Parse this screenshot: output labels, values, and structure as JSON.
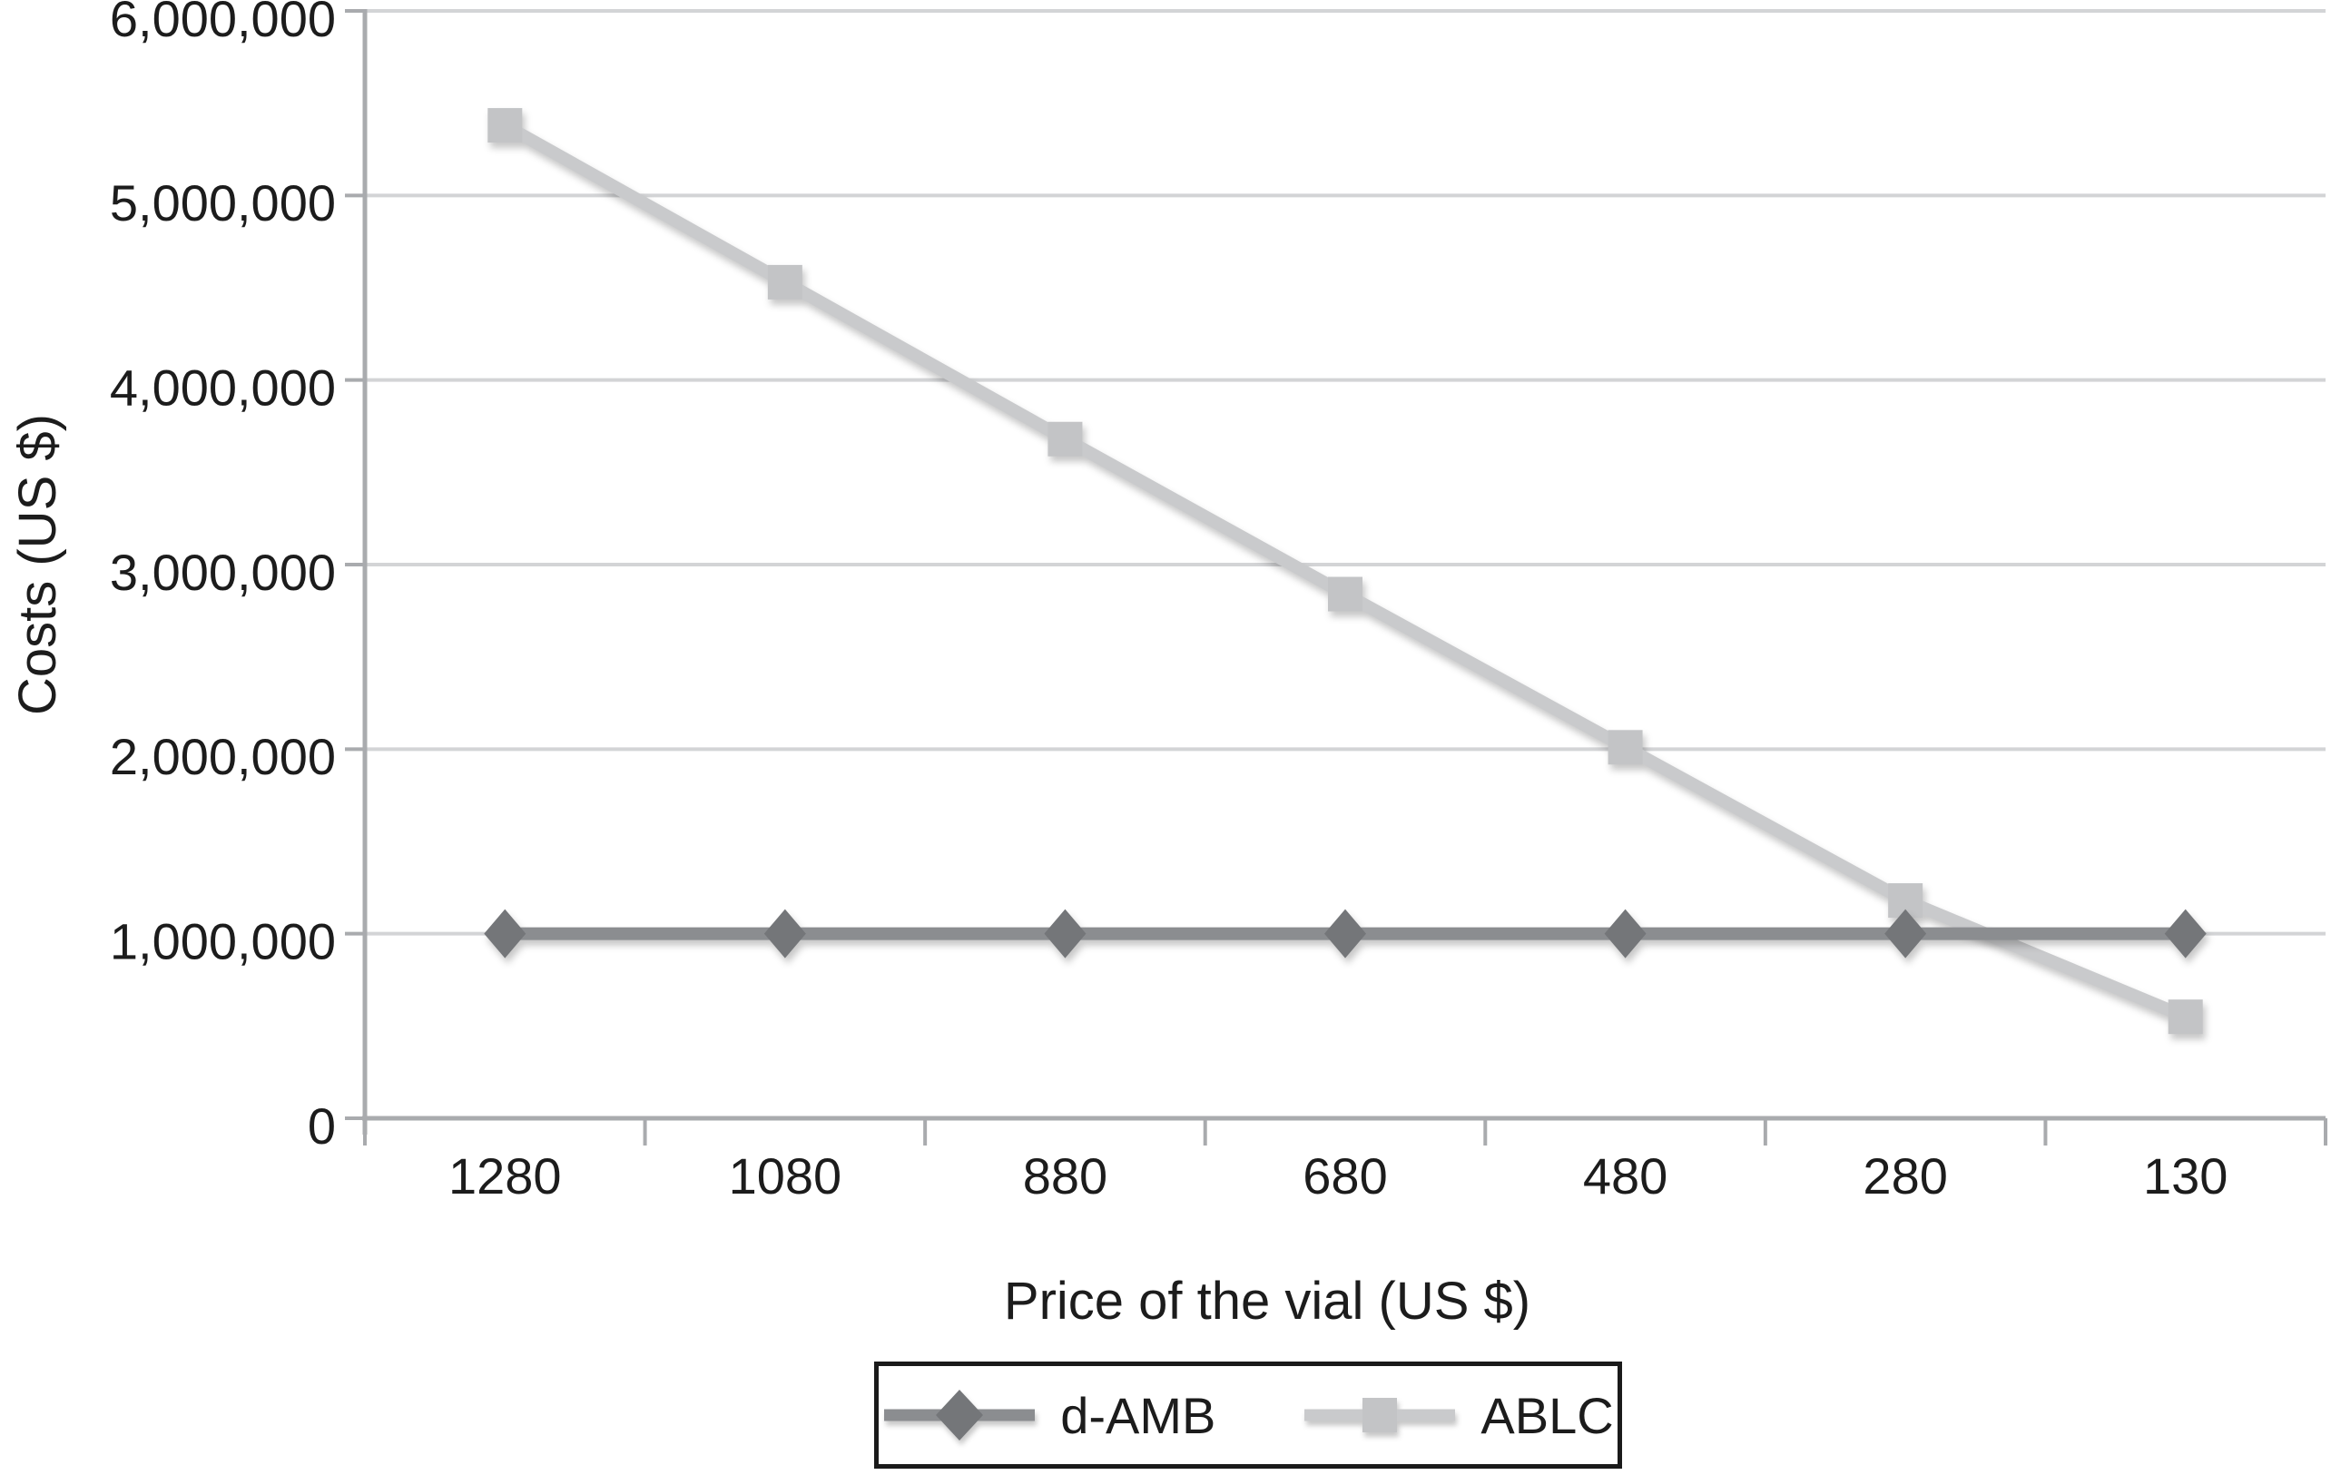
{
  "figure": {
    "background": "#ffffff",
    "text_color": "#1c1c1c"
  },
  "chart_data": {
    "type": "line",
    "title": "",
    "xlabel": "Price of the vial (US $)",
    "ylabel": "Costs (US $)",
    "categories": [
      "1280",
      "1080",
      "880",
      "680",
      "480",
      "280",
      "130"
    ],
    "series": [
      {
        "name": "d-AMB",
        "marker": "diamond",
        "color": "#8b8d90",
        "marker_color": "#747679",
        "values": [
          1000000,
          1000000,
          1000000,
          1000000,
          1000000,
          1000000,
          1000000
        ]
      },
      {
        "name": "ABLC",
        "marker": "square",
        "color": "#c9cacc",
        "marker_color": "#c3c4c6",
        "values": [
          5380000,
          4530000,
          3680000,
          2840000,
          2010000,
          1180000,
          550000
        ]
      }
    ],
    "ylim": [
      0,
      6000000
    ],
    "yticks": [
      0,
      1000000,
      2000000,
      3000000,
      4000000,
      5000000,
      6000000
    ],
    "ytick_labels": [
      "0",
      "1,000,000",
      "2,000,000",
      "3,000,000",
      "4,000,000",
      "5,000,000",
      "6,000,000"
    ],
    "grid": true,
    "legend_position": "bottom",
    "gridline_color": "#d3d4d6",
    "axis_color": "#a9abae"
  }
}
